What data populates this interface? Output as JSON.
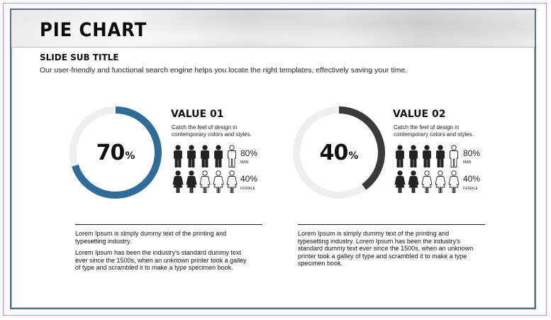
{
  "header": {
    "title": "PIE CHART",
    "subtitle": "SLIDE SUB TITLE",
    "description": "Our user-friendly and functional search engine helps you locate the right templates, effectively saving your time."
  },
  "colors": {
    "accent_blue": "#2f6c99",
    "accent_dark": "#3a3a3a",
    "track": "#efefef"
  },
  "chart_data": [
    {
      "type": "pie",
      "variant": "donut",
      "value": 70,
      "value_text": "70",
      "unit": "%",
      "color": "#2f6c99",
      "heading": "VALUE 01",
      "caption": "Catch the feel of design in contemporary colors and styles.",
      "icon_stats": [
        {
          "label": "MAN",
          "value_text": "80%",
          "value": 80,
          "filled": 4,
          "total": 5,
          "icon": "man-icon"
        },
        {
          "label": "FEMALE",
          "value_text": "40%",
          "value": 40,
          "filled": 2,
          "total": 5,
          "icon": "woman-icon"
        }
      ],
      "body": [
        "Lorem Ipsum is simply dummy text of the printing and typesetting industry.",
        "Lorem Ipsum has been the industry's standard dummy text ever since the 1500s, when an unknown printer took a galley of type and scrambled it to make a type specimen book."
      ]
    },
    {
      "type": "pie",
      "variant": "donut",
      "value": 40,
      "value_text": "40",
      "unit": "%",
      "color": "#3a3a3a",
      "heading": "VALUE 02",
      "caption": "Catch the feel of design in contemporary colors and styles.",
      "icon_stats": [
        {
          "label": "MAN",
          "value_text": "80%",
          "value": 80,
          "filled": 4,
          "total": 5,
          "icon": "man-icon"
        },
        {
          "label": "FEMALE",
          "value_text": "40%",
          "value": 40,
          "filled": 2,
          "total": 5,
          "icon": "woman-icon"
        }
      ],
      "body": [
        "Lorem Ipsum is simply dummy text of the printing and typesetting industry. Lorem Ipsum has been the industry's standard dummy text ever since the 1500s, when an unknown printer took a galley of type and scrambled it to make a type specimen book."
      ]
    }
  ]
}
